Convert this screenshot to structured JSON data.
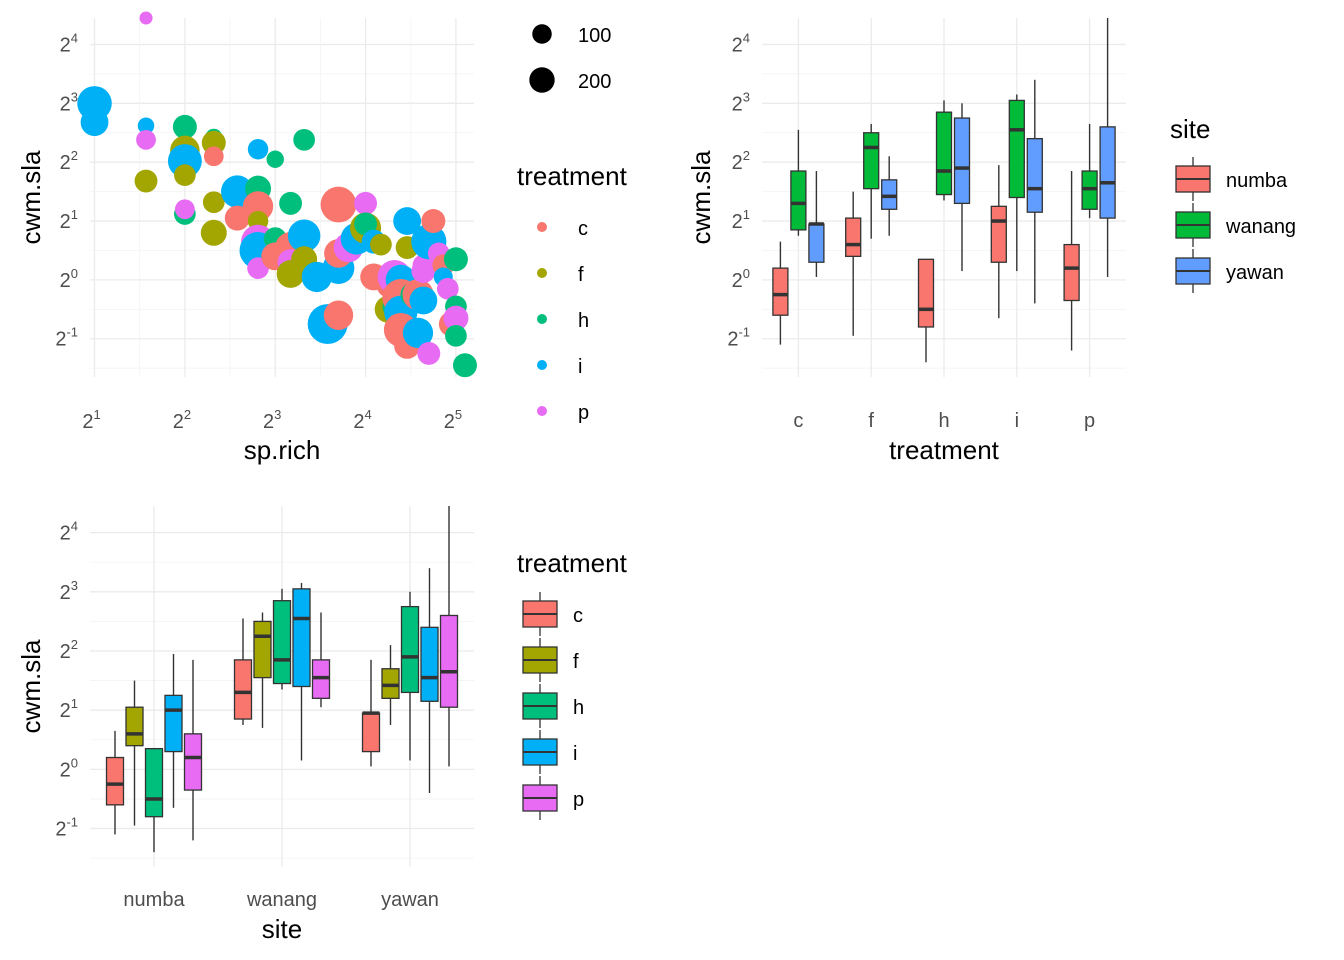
{
  "colors": {
    "c": "#F8766D",
    "f": "#A3A500",
    "h": "#00BF7D",
    "i": "#00B0F6",
    "p": "#E76BF3",
    "numba": "#F8766D",
    "wanang": "#00BA38",
    "yawan": "#619CFF"
  },
  "chart_data": [
    {
      "type": "scatter",
      "xlabel": "sp.rich",
      "ylabel": "cwm.sla",
      "x_scale": "log2",
      "y_scale": "log2",
      "xlim_log2": [
        0.95,
        5.2
      ],
      "ylim_log2": [
        -1.65,
        4.45
      ],
      "x_ticks": [
        {
          "base": "2",
          "exp": "1"
        },
        {
          "base": "2",
          "exp": "2"
        },
        {
          "base": "2",
          "exp": "3"
        },
        {
          "base": "2",
          "exp": "4"
        },
        {
          "base": "2",
          "exp": "5"
        }
      ],
      "y_ticks": [
        {
          "base": "2",
          "exp": "-1"
        },
        {
          "base": "2",
          "exp": "0"
        },
        {
          "base": "2",
          "exp": "1"
        },
        {
          "base": "2",
          "exp": "2"
        },
        {
          "base": "2",
          "exp": "3"
        },
        {
          "base": "2",
          "exp": "4"
        }
      ],
      "size_legend": {
        "title": "",
        "entries": [
          {
            "label": "100",
            "value": 100
          },
          {
            "label": "200",
            "value": 200
          }
        ]
      },
      "color_legend": {
        "title": "treatment",
        "entries": [
          "c",
          "f",
          "h",
          "i",
          "p"
        ]
      },
      "points": [
        {
          "g": "i",
          "lx": 1.0,
          "ly": 3.0,
          "s": 210
        },
        {
          "g": "h",
          "lx": 1.0,
          "ly": 2.62,
          "s": 50
        },
        {
          "g": "i",
          "lx": 1.0,
          "ly": 2.68,
          "s": 120
        },
        {
          "g": "p",
          "lx": 1.57,
          "ly": 4.45,
          "s": 10
        },
        {
          "g": "i",
          "lx": 1.57,
          "ly": 2.62,
          "s": 25
        },
        {
          "g": "p",
          "lx": 1.57,
          "ly": 2.38,
          "s": 45
        },
        {
          "g": "f",
          "lx": 1.57,
          "ly": 1.68,
          "s": 70
        },
        {
          "g": "h",
          "lx": 2.0,
          "ly": 2.6,
          "s": 80
        },
        {
          "g": "f",
          "lx": 2.0,
          "ly": 2.2,
          "s": 140
        },
        {
          "g": "i",
          "lx": 2.0,
          "ly": 2.02,
          "s": 200
        },
        {
          "g": "f",
          "lx": 2.0,
          "ly": 1.78,
          "s": 60
        },
        {
          "g": "h",
          "lx": 2.0,
          "ly": 1.12,
          "s": 60
        },
        {
          "g": "p",
          "lx": 2.0,
          "ly": 1.2,
          "s": 45
        },
        {
          "g": "h",
          "lx": 2.32,
          "ly": 2.42,
          "s": 30
        },
        {
          "g": "f",
          "lx": 2.32,
          "ly": 2.33,
          "s": 80
        },
        {
          "g": "c",
          "lx": 2.32,
          "ly": 2.1,
          "s": 45
        },
        {
          "g": "f",
          "lx": 2.32,
          "ly": 1.32,
          "s": 60
        },
        {
          "g": "f",
          "lx": 2.32,
          "ly": 0.8,
          "s": 100
        },
        {
          "g": "i",
          "lx": 2.58,
          "ly": 1.5,
          "s": 180
        },
        {
          "g": "c",
          "lx": 2.58,
          "ly": 1.05,
          "s": 90
        },
        {
          "g": "i",
          "lx": 2.81,
          "ly": 2.22,
          "s": 50
        },
        {
          "g": "h",
          "lx": 2.81,
          "ly": 1.55,
          "s": 100
        },
        {
          "g": "c",
          "lx": 2.81,
          "ly": 1.25,
          "s": 150
        },
        {
          "g": "f",
          "lx": 2.81,
          "ly": 1.0,
          "s": 50
        },
        {
          "g": "p",
          "lx": 2.81,
          "ly": 0.65,
          "s": 200
        },
        {
          "g": "i",
          "lx": 2.81,
          "ly": 0.5,
          "s": 250
        },
        {
          "g": "p",
          "lx": 2.81,
          "ly": 0.2,
          "s": 60
        },
        {
          "g": "h",
          "lx": 3.0,
          "ly": 2.05,
          "s": 30
        },
        {
          "g": "h",
          "lx": 3.0,
          "ly": 0.7,
          "s": 70
        },
        {
          "g": "c",
          "lx": 3.0,
          "ly": 0.4,
          "s": 120
        },
        {
          "g": "h",
          "lx": 3.17,
          "ly": 1.3,
          "s": 70
        },
        {
          "g": "c",
          "lx": 3.17,
          "ly": 0.55,
          "s": 160
        },
        {
          "g": "p",
          "lx": 3.17,
          "ly": 0.3,
          "s": 100
        },
        {
          "g": "f",
          "lx": 3.17,
          "ly": 0.1,
          "s": 120
        },
        {
          "g": "h",
          "lx": 3.32,
          "ly": 2.38,
          "s": 60
        },
        {
          "g": "i",
          "lx": 3.32,
          "ly": 0.75,
          "s": 180
        },
        {
          "g": "f",
          "lx": 3.32,
          "ly": 0.35,
          "s": 100
        },
        {
          "g": "i",
          "lx": 3.46,
          "ly": 0.05,
          "s": 150
        },
        {
          "g": "i",
          "lx": 3.58,
          "ly": -0.75,
          "s": 300
        },
        {
          "g": "c",
          "lx": 3.7,
          "ly": 1.28,
          "s": 230
        },
        {
          "g": "i",
          "lx": 3.7,
          "ly": 0.2,
          "s": 170
        },
        {
          "g": "c",
          "lx": 3.7,
          "ly": -0.6,
          "s": 140
        },
        {
          "g": "c",
          "lx": 3.7,
          "ly": 0.45,
          "s": 130
        },
        {
          "g": "p",
          "lx": 3.81,
          "ly": 0.55,
          "s": 140
        },
        {
          "g": "i",
          "lx": 3.9,
          "ly": 0.7,
          "s": 170
        },
        {
          "g": "p",
          "lx": 4.0,
          "ly": 1.3,
          "s": 70
        },
        {
          "g": "f",
          "lx": 4.0,
          "ly": 0.88,
          "s": 160
        },
        {
          "g": "h",
          "lx": 4.0,
          "ly": 0.95,
          "s": 70
        },
        {
          "g": "c",
          "lx": 4.09,
          "ly": 0.05,
          "s": 110
        },
        {
          "g": "i",
          "lx": 4.09,
          "ly": 0.65,
          "s": 80
        },
        {
          "g": "f",
          "lx": 4.17,
          "ly": 0.6,
          "s": 60
        },
        {
          "g": "f",
          "lx": 4.25,
          "ly": -0.5,
          "s": 110
        },
        {
          "g": "c",
          "lx": 4.25,
          "ly": -0.1,
          "s": 70
        },
        {
          "g": "h",
          "lx": 4.32,
          "ly": -0.45,
          "s": 80
        },
        {
          "g": "p",
          "lx": 4.32,
          "ly": 0.05,
          "s": 200
        },
        {
          "g": "i",
          "lx": 4.39,
          "ly": 0.0,
          "s": 150
        },
        {
          "g": "c",
          "lx": 4.39,
          "ly": -0.3,
          "s": 250
        },
        {
          "g": "i",
          "lx": 4.39,
          "ly": -0.55,
          "s": 190
        },
        {
          "g": "c",
          "lx": 4.39,
          "ly": -0.85,
          "s": 200
        },
        {
          "g": "f",
          "lx": 4.46,
          "ly": 0.55,
          "s": 70
        },
        {
          "g": "i",
          "lx": 4.46,
          "ly": 1.0,
          "s": 120
        },
        {
          "g": "c",
          "lx": 4.46,
          "ly": -1.12,
          "s": 100
        },
        {
          "g": "h",
          "lx": 4.52,
          "ly": -0.25,
          "s": 80
        },
        {
          "g": "c",
          "lx": 4.58,
          "ly": -0.25,
          "s": 160
        },
        {
          "g": "i",
          "lx": 4.58,
          "ly": -0.9,
          "s": 150
        },
        {
          "g": "i",
          "lx": 4.64,
          "ly": -0.35,
          "s": 120
        },
        {
          "g": "p",
          "lx": 4.64,
          "ly": 0.25,
          "s": 60
        },
        {
          "g": "p",
          "lx": 4.64,
          "ly": 0.15,
          "s": 80
        },
        {
          "g": "i",
          "lx": 4.7,
          "ly": 0.65,
          "s": 220
        },
        {
          "g": "p",
          "lx": 4.7,
          "ly": -1.25,
          "s": 70
        },
        {
          "g": "c",
          "lx": 4.75,
          "ly": 1.0,
          "s": 80
        },
        {
          "g": "p",
          "lx": 4.81,
          "ly": 0.45,
          "s": 60
        },
        {
          "g": "c",
          "lx": 4.86,
          "ly": 0.25,
          "s": 60
        },
        {
          "g": "i",
          "lx": 4.86,
          "ly": 0.05,
          "s": 40
        },
        {
          "g": "p",
          "lx": 4.91,
          "ly": -0.15,
          "s": 60
        },
        {
          "g": "c",
          "lx": 4.95,
          "ly": -0.75,
          "s": 90
        },
        {
          "g": "h",
          "lx": 5.0,
          "ly": 0.35,
          "s": 80
        },
        {
          "g": "h",
          "lx": 5.0,
          "ly": -0.45,
          "s": 60
        },
        {
          "g": "p",
          "lx": 5.0,
          "ly": -0.65,
          "s": 90
        },
        {
          "g": "h",
          "lx": 5.0,
          "ly": -0.95,
          "s": 60
        },
        {
          "g": "h",
          "lx": 5.1,
          "ly": -1.45,
          "s": 80
        }
      ]
    },
    {
      "type": "box",
      "xlabel": "treatment",
      "ylabel": "cwm.sla",
      "y_scale": "log2",
      "ylim_log2": [
        -1.65,
        4.45
      ],
      "categories": [
        "c",
        "f",
        "h",
        "i",
        "p"
      ],
      "groups": [
        "numba",
        "wanang",
        "yawan"
      ],
      "y_ticks": [
        {
          "base": "2",
          "exp": "-1"
        },
        {
          "base": "2",
          "exp": "0"
        },
        {
          "base": "2",
          "exp": "1"
        },
        {
          "base": "2",
          "exp": "2"
        },
        {
          "base": "2",
          "exp": "3"
        },
        {
          "base": "2",
          "exp": "4"
        }
      ],
      "legend": {
        "title": "site",
        "entries": [
          "numba",
          "wanang",
          "yawan"
        ]
      },
      "boxes": [
        {
          "cat": "c",
          "grp": "numba",
          "stats": [
            -1.1,
            -0.6,
            -0.25,
            0.2,
            0.65
          ]
        },
        {
          "cat": "c",
          "grp": "wanang",
          "stats": [
            0.75,
            0.85,
            1.3,
            1.85,
            2.55
          ]
        },
        {
          "cat": "c",
          "grp": "yawan",
          "stats": [
            0.05,
            0.3,
            0.95,
            0.95,
            1.85
          ]
        },
        {
          "cat": "f",
          "grp": "numba",
          "stats": [
            -0.95,
            0.4,
            0.6,
            1.05,
            1.5
          ]
        },
        {
          "cat": "f",
          "grp": "wanang",
          "stats": [
            0.7,
            1.55,
            2.25,
            2.5,
            2.65
          ]
        },
        {
          "cat": "f",
          "grp": "yawan",
          "stats": [
            0.75,
            1.2,
            1.42,
            1.7,
            2.1
          ]
        },
        {
          "cat": "h",
          "grp": "numba",
          "stats": [
            -1.4,
            -0.8,
            -0.5,
            0.35,
            0.35
          ]
        },
        {
          "cat": "h",
          "grp": "wanang",
          "stats": [
            1.35,
            1.45,
            1.85,
            2.85,
            3.05
          ]
        },
        {
          "cat": "h",
          "grp": "yawan",
          "stats": [
            0.15,
            1.3,
            1.9,
            2.75,
            3.0
          ]
        },
        {
          "cat": "i",
          "grp": "numba",
          "stats": [
            -0.65,
            0.3,
            1.0,
            1.25,
            1.95
          ]
        },
        {
          "cat": "i",
          "grp": "wanang",
          "stats": [
            0.15,
            1.4,
            2.55,
            3.05,
            3.15
          ]
        },
        {
          "cat": "i",
          "grp": "yawan",
          "stats": [
            -0.4,
            1.15,
            1.55,
            2.4,
            3.4
          ]
        },
        {
          "cat": "p",
          "grp": "numba",
          "stats": [
            -1.2,
            -0.35,
            0.2,
            0.6,
            1.85
          ]
        },
        {
          "cat": "p",
          "grp": "wanang",
          "stats": [
            1.05,
            1.2,
            1.55,
            1.85,
            2.65
          ]
        },
        {
          "cat": "p",
          "grp": "yawan",
          "stats": [
            0.05,
            1.05,
            1.65,
            2.6,
            4.45
          ]
        }
      ]
    },
    {
      "type": "box",
      "xlabel": "site",
      "ylabel": "cwm.sla",
      "y_scale": "log2",
      "ylim_log2": [
        -1.65,
        4.45
      ],
      "categories": [
        "numba",
        "wanang",
        "yawan"
      ],
      "groups": [
        "c",
        "f",
        "h",
        "i",
        "p"
      ],
      "y_ticks": [
        {
          "base": "2",
          "exp": "-1"
        },
        {
          "base": "2",
          "exp": "0"
        },
        {
          "base": "2",
          "exp": "1"
        },
        {
          "base": "2",
          "exp": "2"
        },
        {
          "base": "2",
          "exp": "3"
        },
        {
          "base": "2",
          "exp": "4"
        }
      ],
      "legend": {
        "title": "treatment",
        "entries": [
          "c",
          "f",
          "h",
          "i",
          "p"
        ]
      },
      "boxes": [
        {
          "cat": "numba",
          "grp": "c",
          "stats": [
            -1.1,
            -0.6,
            -0.25,
            0.2,
            0.65
          ]
        },
        {
          "cat": "numba",
          "grp": "f",
          "stats": [
            -0.95,
            0.4,
            0.6,
            1.05,
            1.5
          ]
        },
        {
          "cat": "numba",
          "grp": "h",
          "stats": [
            -1.4,
            -0.8,
            -0.5,
            0.35,
            0.35
          ]
        },
        {
          "cat": "numba",
          "grp": "i",
          "stats": [
            -0.65,
            0.3,
            1.0,
            1.25,
            1.95
          ]
        },
        {
          "cat": "numba",
          "grp": "p",
          "stats": [
            -1.2,
            -0.35,
            0.2,
            0.6,
            1.85
          ]
        },
        {
          "cat": "wanang",
          "grp": "c",
          "stats": [
            0.75,
            0.85,
            1.3,
            1.85,
            2.55
          ]
        },
        {
          "cat": "wanang",
          "grp": "f",
          "stats": [
            0.7,
            1.55,
            2.25,
            2.5,
            2.65
          ]
        },
        {
          "cat": "wanang",
          "grp": "h",
          "stats": [
            1.35,
            1.45,
            1.85,
            2.85,
            3.05
          ]
        },
        {
          "cat": "wanang",
          "grp": "i",
          "stats": [
            0.15,
            1.4,
            2.55,
            3.05,
            3.15
          ]
        },
        {
          "cat": "wanang",
          "grp": "p",
          "stats": [
            1.05,
            1.2,
            1.55,
            1.85,
            2.65
          ]
        },
        {
          "cat": "yawan",
          "grp": "c",
          "stats": [
            0.05,
            0.3,
            0.95,
            0.95,
            1.85
          ]
        },
        {
          "cat": "yawan",
          "grp": "f",
          "stats": [
            0.75,
            1.2,
            1.42,
            1.7,
            2.1
          ]
        },
        {
          "cat": "yawan",
          "grp": "h",
          "stats": [
            0.15,
            1.3,
            1.9,
            2.75,
            3.0
          ]
        },
        {
          "cat": "yawan",
          "grp": "i",
          "stats": [
            -0.4,
            1.15,
            1.55,
            2.4,
            3.4
          ]
        },
        {
          "cat": "yawan",
          "grp": "p",
          "stats": [
            0.05,
            1.05,
            1.65,
            2.6,
            4.45
          ]
        }
      ]
    }
  ]
}
